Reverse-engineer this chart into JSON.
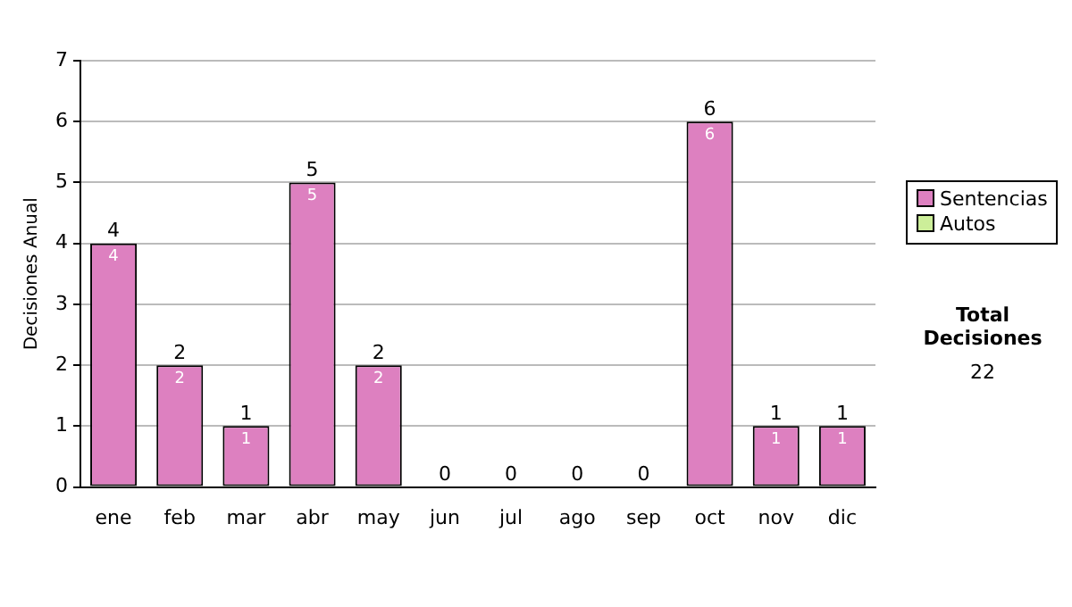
{
  "chart_data": {
    "type": "bar",
    "stacked": true,
    "ylabel": "Decisiones Anual",
    "categories": [
      "ene",
      "feb",
      "mar",
      "abr",
      "may",
      "jun",
      "jul",
      "ago",
      "sep",
      "oct",
      "nov",
      "dic"
    ],
    "series": [
      {
        "name": "Sentencias",
        "color": "#dd80c0",
        "values": [
          4,
          2,
          1,
          5,
          2,
          0,
          0,
          0,
          0,
          6,
          1,
          1
        ],
        "value_labels": [
          "4",
          "2",
          "1",
          "5",
          "2",
          null,
          null,
          null,
          null,
          "6",
          "1",
          "1"
        ]
      },
      {
        "name": "Autos",
        "color": "#ccee99",
        "values": [
          0,
          0,
          0,
          0,
          0,
          0,
          0,
          0,
          0,
          0,
          0,
          0
        ]
      }
    ],
    "totals": [
      "4",
      "2",
      "1",
      "5",
      "2",
      "0",
      "0",
      "0",
      "0",
      "6",
      "1",
      "1"
    ],
    "ylim": [
      0,
      7
    ],
    "yticks": [
      0,
      1,
      2,
      3,
      4,
      5,
      6,
      7
    ],
    "grid": "y",
    "legend": "right",
    "annotations": [
      "Total Decisiones",
      "22"
    ]
  }
}
